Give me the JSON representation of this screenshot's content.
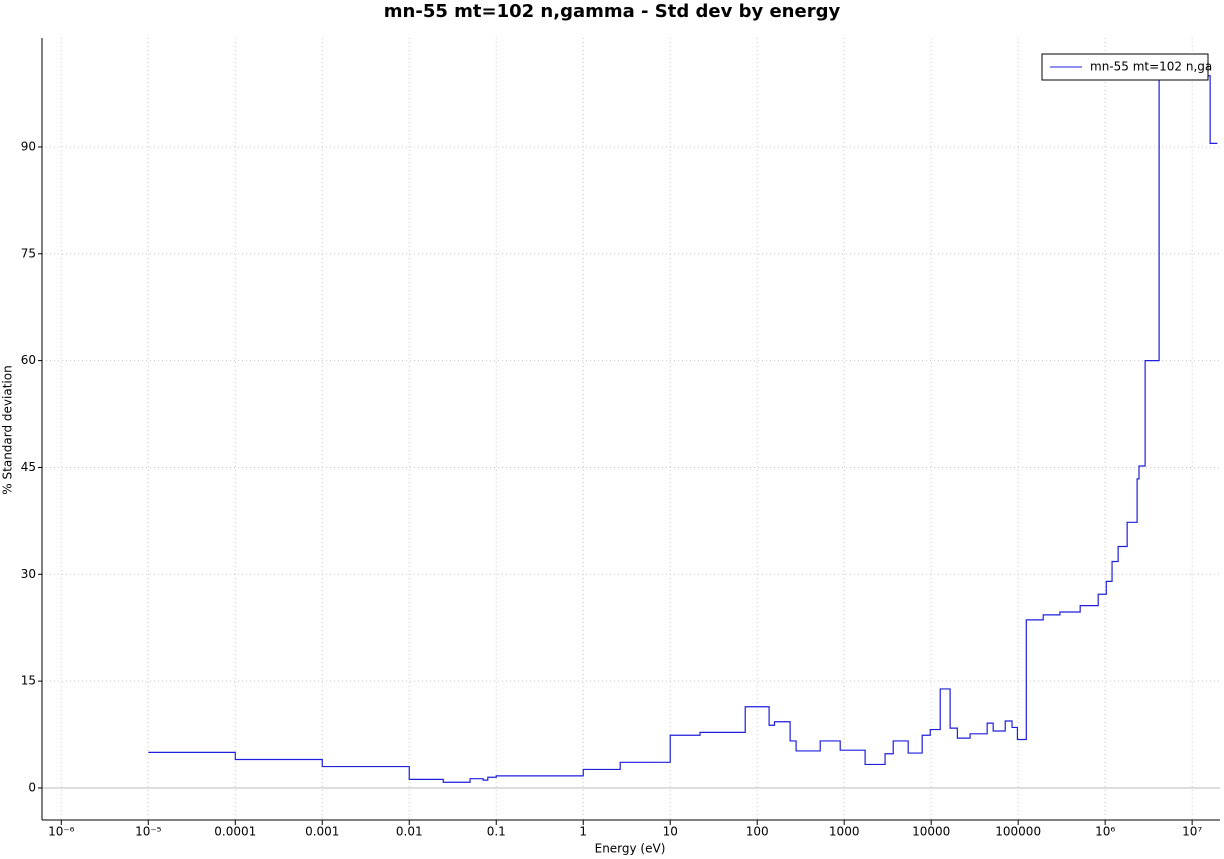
{
  "chart_data": {
    "type": "line",
    "steps": "post",
    "log_x": true,
    "grid": true,
    "legend": "upper right",
    "title": "mn-55 mt=102 n,gamma - Std dev by energy",
    "xlabel": "Energy (eV)",
    "ylabel": "% Standard deviation",
    "xlim": [
      6e-07,
      20900000.0
    ],
    "ylim": [
      -4.5,
      105.3
    ],
    "xticks": [
      {
        "value": 1e-06,
        "label": "10⁻⁶"
      },
      {
        "value": 1e-05,
        "label": "10⁻⁵"
      },
      0.0001,
      0.001,
      0.01,
      0.1,
      1,
      10,
      100,
      1000,
      10000,
      100000,
      {
        "value": 1000000.0,
        "label": "10⁶"
      },
      {
        "value": 10000000.0,
        "label": "10⁷"
      }
    ],
    "yticks": [
      0,
      15,
      30,
      45,
      60,
      75,
      90
    ],
    "series": [
      {
        "name": "mn-55 mt=102 n,ga",
        "color": "#1f1fdc",
        "x": [
          1e-05,
          0.0001,
          0.001,
          0.01,
          0.0246,
          0.05,
          0.0706,
          0.08,
          0.1,
          1,
          2.66,
          10,
          22,
          72.8,
          137,
          158,
          239,
          280,
          530,
          900,
          1740,
          2950,
          3660,
          5440,
          7880,
          9750,
          12700,
          16500,
          20000,
          28000,
          44000,
          51600,
          71000,
          85000,
          98000,
          124000,
          194000,
          302000,
          516000,
          832000,
          1030000,
          1200000,
          1410000,
          1790000,
          2330000,
          2450000,
          2880000,
          4170000,
          16100000,
          19500000
        ],
        "values": [
          5.0,
          4.0,
          3.0,
          1.2,
          0.8,
          1.3,
          1.1,
          1.5,
          1.7,
          2.6,
          3.6,
          7.4,
          7.8,
          11.4,
          8.8,
          9.3,
          6.6,
          5.2,
          6.6,
          5.3,
          3.3,
          4.8,
          6.6,
          4.9,
          7.4,
          8.2,
          13.9,
          8.4,
          7.0,
          7.6,
          9.1,
          8.0,
          9.4,
          8.5,
          6.8,
          23.6,
          24.3,
          24.7,
          25.6,
          27.2,
          29.0,
          31.8,
          33.9,
          37.3,
          43.4,
          45.2,
          60.0,
          100.0,
          90.5,
          90.5
        ]
      }
    ]
  }
}
